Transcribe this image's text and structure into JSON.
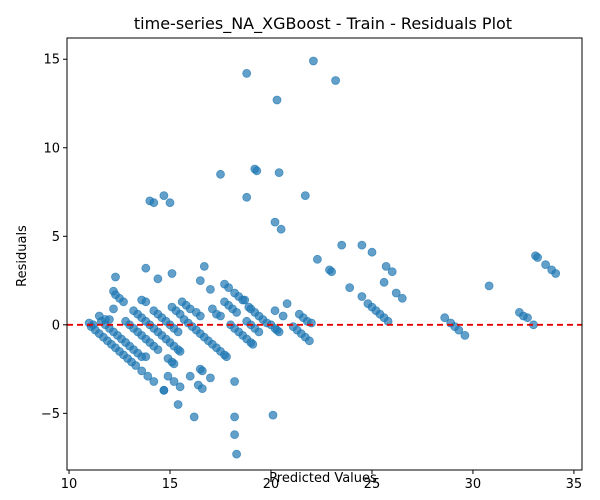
{
  "chart_data": {
    "type": "scatter",
    "title": "time-series_NA_XGBoost - Train - Residuals Plot",
    "xlabel": "Predicted Values",
    "ylabel": "Residuals",
    "xlim": [
      9.9,
      35.4
    ],
    "ylim": [
      -8.2,
      16.2
    ],
    "xticks": [
      10,
      15,
      20,
      25,
      30,
      35
    ],
    "yticks": [
      -5,
      0,
      5,
      10,
      15
    ],
    "grid": false,
    "colors": {
      "points": "#1f77b4",
      "zero_line": "#e00000"
    },
    "reference_line": {
      "y": 0,
      "style": "dashed"
    },
    "points": [
      [
        11.0,
        0.1
      ],
      [
        11.2,
        0.0
      ],
      [
        11.5,
        0.5
      ],
      [
        11.8,
        0.3
      ],
      [
        12.0,
        0.3
      ],
      [
        12.3,
        1.7
      ],
      [
        12.5,
        1.5
      ],
      [
        12.7,
        1.3
      ],
      [
        12.3,
        2.7
      ],
      [
        12.2,
        1.9
      ],
      [
        12.2,
        0.9
      ],
      [
        11.1,
        -0.1
      ],
      [
        11.3,
        -0.3
      ],
      [
        11.5,
        -0.5
      ],
      [
        11.7,
        -0.7
      ],
      [
        11.9,
        -0.9
      ],
      [
        12.1,
        -1.1
      ],
      [
        12.3,
        -1.3
      ],
      [
        12.5,
        -1.5
      ],
      [
        12.7,
        -1.7
      ],
      [
        12.9,
        -1.9
      ],
      [
        13.1,
        -2.1
      ],
      [
        11.6,
        0.2
      ],
      [
        11.8,
        0.0
      ],
      [
        12.0,
        -0.2
      ],
      [
        12.2,
        -0.4
      ],
      [
        12.4,
        -0.6
      ],
      [
        12.6,
        -0.8
      ],
      [
        12.8,
        -1.0
      ],
      [
        13.0,
        -1.2
      ],
      [
        13.2,
        -1.4
      ],
      [
        13.4,
        -1.6
      ],
      [
        13.6,
        -1.8
      ],
      [
        13.8,
        -1.8
      ],
      [
        12.8,
        0.2
      ],
      [
        13.0,
        0.0
      ],
      [
        13.2,
        -0.2
      ],
      [
        13.4,
        -0.4
      ],
      [
        13.6,
        -0.6
      ],
      [
        13.8,
        -0.8
      ],
      [
        14.0,
        -1.0
      ],
      [
        14.2,
        -1.2
      ],
      [
        14.4,
        -1.4
      ],
      [
        13.2,
        0.8
      ],
      [
        13.4,
        0.6
      ],
      [
        13.6,
        0.4
      ],
      [
        13.8,
        0.2
      ],
      [
        14.0,
        0.0
      ],
      [
        14.2,
        -0.2
      ],
      [
        14.4,
        -0.4
      ],
      [
        14.6,
        -0.6
      ],
      [
        14.8,
        -0.8
      ],
      [
        13.3,
        -2.3
      ],
      [
        13.6,
        -2.6
      ],
      [
        13.9,
        -2.9
      ],
      [
        14.2,
        -3.2
      ],
      [
        14.7,
        -3.7
      ],
      [
        13.6,
        1.4
      ],
      [
        13.8,
        1.3
      ],
      [
        13.8,
        3.2
      ],
      [
        14.4,
        2.6
      ],
      [
        15.1,
        2.9
      ],
      [
        14.2,
        0.8
      ],
      [
        14.4,
        0.6
      ],
      [
        14.6,
        0.4
      ],
      [
        14.8,
        0.2
      ],
      [
        15.0,
        0.0
      ],
      [
        15.2,
        -0.2
      ],
      [
        15.4,
        -0.4
      ],
      [
        15.1,
        1.0
      ],
      [
        15.3,
        0.8
      ],
      [
        15.5,
        0.6
      ],
      [
        14.0,
        7.0
      ],
      [
        14.2,
        6.9
      ],
      [
        14.7,
        7.3
      ],
      [
        15.0,
        6.9
      ],
      [
        15.0,
        -1.0
      ],
      [
        15.2,
        -1.2
      ],
      [
        15.4,
        -1.4
      ],
      [
        15.5,
        -1.5
      ],
      [
        14.9,
        -1.9
      ],
      [
        15.1,
        -2.1
      ],
      [
        15.2,
        -2.2
      ],
      [
        14.9,
        -2.9
      ],
      [
        15.2,
        -3.2
      ],
      [
        15.5,
        -3.5
      ],
      [
        15.4,
        -4.5
      ],
      [
        14.7,
        -3.7
      ],
      [
        15.6,
        1.3
      ],
      [
        15.8,
        1.1
      ],
      [
        16.0,
        0.9
      ],
      [
        15.7,
        0.3
      ],
      [
        15.9,
        0.1
      ],
      [
        16.1,
        -0.1
      ],
      [
        16.3,
        -0.3
      ],
      [
        16.5,
        -0.5
      ],
      [
        16.7,
        -0.7
      ],
      [
        16.9,
        -0.9
      ],
      [
        17.1,
        -1.1
      ],
      [
        17.3,
        -1.3
      ],
      [
        17.5,
        -1.5
      ],
      [
        17.7,
        -1.7
      ],
      [
        17.8,
        -1.8
      ],
      [
        16.0,
        -2.9
      ],
      [
        16.4,
        -3.4
      ],
      [
        16.6,
        -3.6
      ],
      [
        16.5,
        -2.5
      ],
      [
        16.6,
        -2.6
      ],
      [
        17.0,
        -3.0
      ],
      [
        16.2,
        -5.2
      ],
      [
        16.3,
        0.7
      ],
      [
        16.5,
        0.5
      ],
      [
        16.5,
        2.5
      ],
      [
        16.7,
        3.3
      ],
      [
        17.0,
        2.0
      ],
      [
        17.1,
        0.9
      ],
      [
        17.3,
        0.6
      ],
      [
        17.5,
        0.5
      ],
      [
        17.5,
        8.5
      ],
      [
        17.7,
        2.3
      ],
      [
        17.9,
        2.1
      ],
      [
        17.7,
        1.3
      ],
      [
        17.9,
        1.1
      ],
      [
        18.1,
        0.9
      ],
      [
        18.3,
        0.7
      ],
      [
        18.0,
        0.0
      ],
      [
        18.2,
        -0.2
      ],
      [
        18.4,
        -0.4
      ],
      [
        18.6,
        -0.6
      ],
      [
        18.8,
        -0.8
      ],
      [
        19.0,
        -1.0
      ],
      [
        19.1,
        -1.1
      ],
      [
        18.2,
        1.8
      ],
      [
        18.4,
        1.6
      ],
      [
        18.6,
        1.4
      ],
      [
        18.7,
        1.4
      ],
      [
        18.9,
        1.0
      ],
      [
        19.0,
        0.9
      ],
      [
        19.2,
        0.7
      ],
      [
        19.4,
        0.5
      ],
      [
        19.6,
        0.3
      ],
      [
        19.8,
        0.1
      ],
      [
        18.8,
        0.2
      ],
      [
        19.0,
        0.0
      ],
      [
        19.2,
        -0.2
      ],
      [
        19.4,
        -0.4
      ],
      [
        18.8,
        7.2
      ],
      [
        18.8,
        14.2
      ],
      [
        19.2,
        8.8
      ],
      [
        19.3,
        8.7
      ],
      [
        18.2,
        -3.2
      ],
      [
        18.2,
        -5.2
      ],
      [
        18.2,
        -6.2
      ],
      [
        18.3,
        -7.3
      ],
      [
        20.1,
        -5.1
      ],
      [
        20.0,
        0.0
      ],
      [
        20.2,
        -0.2
      ],
      [
        20.3,
        -0.3
      ],
      [
        20.4,
        -0.4
      ],
      [
        20.2,
        0.8
      ],
      [
        20.6,
        0.5
      ],
      [
        20.8,
        1.2
      ],
      [
        20.2,
        5.8
      ],
      [
        20.5,
        5.4
      ],
      [
        20.4,
        8.6
      ],
      [
        20.3,
        12.7
      ],
      [
        21.1,
        -0.1
      ],
      [
        21.3,
        -0.3
      ],
      [
        21.5,
        -0.5
      ],
      [
        21.7,
        -0.7
      ],
      [
        21.9,
        -0.9
      ],
      [
        21.4,
        0.6
      ],
      [
        21.6,
        0.4
      ],
      [
        21.8,
        0.2
      ],
      [
        22.0,
        0.1
      ],
      [
        21.7,
        7.3
      ],
      [
        22.1,
        14.9
      ],
      [
        22.3,
        3.7
      ],
      [
        22.9,
        3.1
      ],
      [
        23.0,
        3.0
      ],
      [
        23.5,
        4.5
      ],
      [
        23.2,
        13.8
      ],
      [
        23.9,
        2.1
      ],
      [
        24.5,
        4.5
      ],
      [
        25.0,
        4.1
      ],
      [
        24.5,
        1.6
      ],
      [
        24.8,
        1.2
      ],
      [
        25.0,
        1.0
      ],
      [
        25.2,
        0.8
      ],
      [
        25.4,
        0.6
      ],
      [
        25.6,
        0.4
      ],
      [
        25.8,
        0.2
      ],
      [
        25.6,
        2.4
      ],
      [
        25.7,
        3.3
      ],
      [
        26.0,
        3.0
      ],
      [
        26.2,
        1.8
      ],
      [
        26.5,
        1.5
      ],
      [
        28.6,
        0.4
      ],
      [
        28.9,
        0.1
      ],
      [
        29.1,
        -0.1
      ],
      [
        29.3,
        -0.3
      ],
      [
        29.6,
        -0.6
      ],
      [
        30.8,
        2.2
      ],
      [
        32.3,
        0.7
      ],
      [
        32.5,
        0.5
      ],
      [
        32.7,
        0.4
      ],
      [
        33.0,
        0.0
      ],
      [
        33.1,
        3.9
      ],
      [
        33.2,
        3.8
      ],
      [
        33.6,
        3.4
      ],
      [
        33.9,
        3.1
      ],
      [
        34.1,
        2.9
      ]
    ]
  }
}
